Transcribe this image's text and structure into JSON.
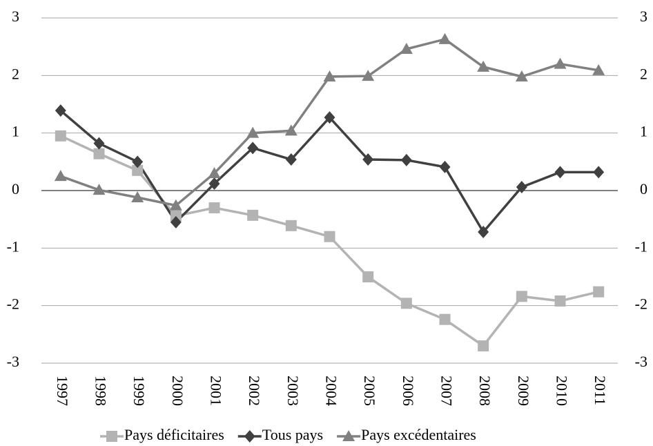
{
  "chart_data": {
    "type": "line",
    "categories": [
      "1997",
      "1998",
      "1999",
      "2000",
      "2001",
      "2002",
      "2003",
      "2004",
      "2005",
      "2006",
      "2007",
      "2008",
      "2009",
      "2010",
      "2011"
    ],
    "series": [
      {
        "name": "Pays déficitaires",
        "color": "#b3b3b3",
        "marker": "square",
        "values": [
          0.95,
          0.64,
          0.35,
          -0.44,
          -0.3,
          -0.43,
          -0.61,
          -0.8,
          -1.5,
          -1.96,
          -2.24,
          -2.7,
          -1.84,
          -1.92,
          -1.76
        ]
      },
      {
        "name": "Tous pays",
        "color": "#404040",
        "marker": "diamond",
        "values": [
          1.39,
          0.82,
          0.5,
          -0.55,
          0.12,
          0.74,
          0.54,
          1.27,
          0.54,
          0.53,
          0.41,
          -0.72,
          0.06,
          0.32,
          0.32
        ]
      },
      {
        "name": "Pays excédentaires",
        "color": "#808080",
        "marker": "triangle",
        "values": [
          0.25,
          0.01,
          -0.12,
          -0.26,
          0.3,
          1.0,
          1.04,
          1.98,
          1.99,
          2.46,
          2.63,
          2.15,
          1.98,
          2.2,
          2.09
        ]
      }
    ],
    "ylim": [
      -3,
      3
    ],
    "yticks": [
      -3,
      -2,
      -1,
      0,
      1,
      2,
      3
    ],
    "y2lim": [
      -3,
      3
    ],
    "y2ticks": [
      -3,
      -2,
      -1,
      0,
      1,
      2,
      3
    ],
    "grid": true,
    "legend": "bottom"
  }
}
